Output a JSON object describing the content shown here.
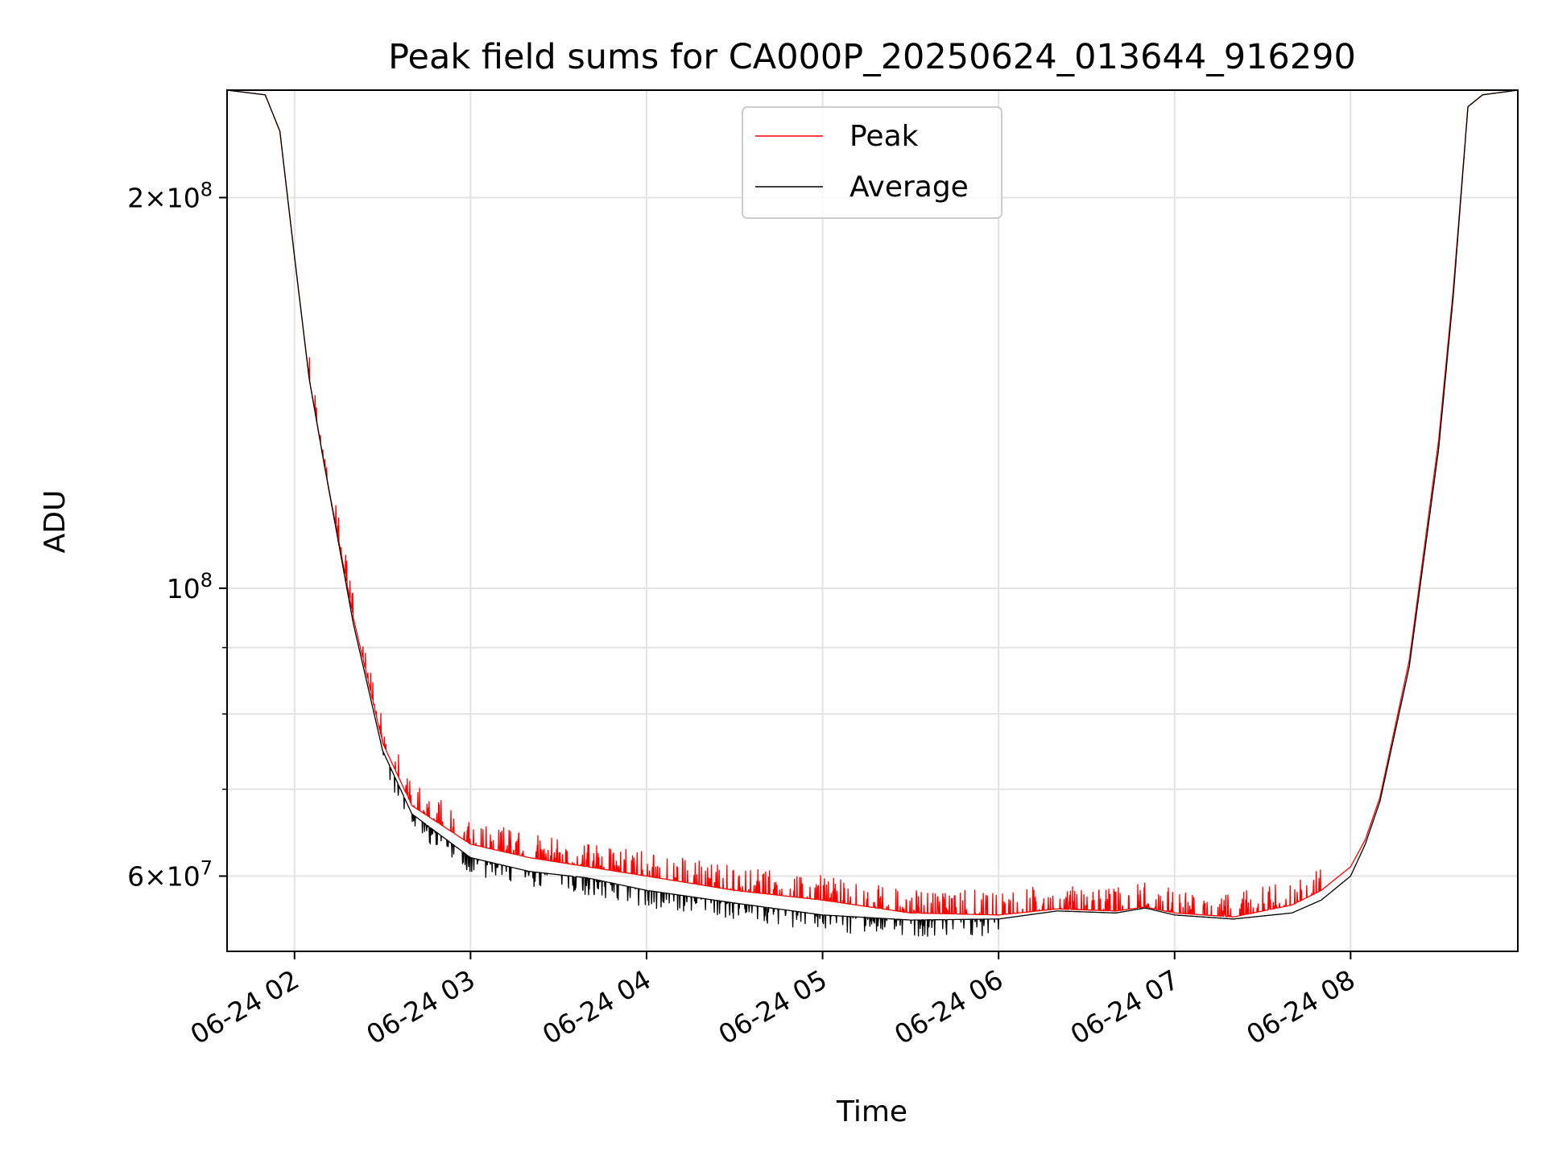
{
  "chart_data": {
    "type": "line",
    "title": "Peak field sums for CA000P_20250624_013644_916290",
    "xlabel": "Time",
    "ylabel": "ADU",
    "yscale": "log",
    "ylim": [
      52500000,
      242000000
    ],
    "xlim": [
      "06-24 01:37",
      "06-24 08:57"
    ],
    "grid": true,
    "legend_placement": "top-center",
    "x_ticks": [
      "06-24 02",
      "06-24 03",
      "06-24 04",
      "06-24 05",
      "06-24 06",
      "06-24 07",
      "06-24 08"
    ],
    "y_ticks_major": [
      "2×10^8",
      "10^8",
      "6×10^7"
    ],
    "y_ticks_minor": [
      70000000,
      80000000,
      90000000
    ],
    "series": [
      {
        "name": "Peak",
        "color": "#ff0000",
        "x": [
          "06-24 01:37",
          "06-24 01:50",
          "06-24 01:55",
          "06-24 02:00",
          "06-24 02:05",
          "06-24 02:10",
          "06-24 02:20",
          "06-24 02:30",
          "06-24 02:40",
          "06-24 03:00",
          "06-24 03:20",
          "06-24 03:40",
          "06-24 04:00",
          "06-24 04:30",
          "06-24 05:00",
          "06-24 05:30",
          "06-24 06:00",
          "06-24 06:20",
          "06-24 06:40",
          "06-24 06:50",
          "06-24 07:00",
          "06-24 07:20",
          "06-24 07:40",
          "06-24 07:50",
          "06-24 08:00",
          "06-24 08:05",
          "06-24 08:10",
          "06-24 08:20",
          "06-24 08:30",
          "06-24 08:35",
          "06-24 08:40",
          "06-24 08:45",
          "06-24 08:57"
        ],
        "y": [
          242000000,
          240000000,
          225000000,
          180000000,
          145000000,
          125000000,
          95000000,
          76000000,
          68000000,
          63500000,
          62000000,
          61000000,
          60000000,
          58500000,
          57500000,
          56200000,
          56000000,
          56600000,
          56400000,
          56800000,
          56200000,
          55800000,
          57000000,
          58500000,
          61000000,
          64000000,
          69000000,
          88000000,
          130000000,
          170000000,
          235000000,
          240000000,
          242000000
        ],
        "spikes": [
          66000000,
          65000000,
          64000000,
          63500000,
          63000000,
          62500000,
          61500000,
          60500000,
          59500000,
          58000000,
          57500000,
          57000000,
          56500000,
          57500000,
          58000000,
          57800000,
          58500000,
          60500000,
          62000000,
          64500000
        ]
      },
      {
        "name": "Average",
        "color": "#000000",
        "x": [
          "06-24 01:37",
          "06-24 01:50",
          "06-24 01:55",
          "06-24 02:00",
          "06-24 02:05",
          "06-24 02:10",
          "06-24 02:20",
          "06-24 02:30",
          "06-24 02:40",
          "06-24 03:00",
          "06-24 03:20",
          "06-24 03:40",
          "06-24 04:00",
          "06-24 04:30",
          "06-24 05:00",
          "06-24 05:30",
          "06-24 06:00",
          "06-24 06:20",
          "06-24 06:40",
          "06-24 06:50",
          "06-24 07:00",
          "06-24 07:20",
          "06-24 07:40",
          "06-24 07:50",
          "06-24 08:00",
          "06-24 08:05",
          "06-24 08:10",
          "06-24 08:20",
          "06-24 08:30",
          "06-24 08:35",
          "06-24 08:40",
          "06-24 08:45",
          "06-24 08:57"
        ],
        "y": [
          242000000,
          240000000,
          225000000,
          180000000,
          145000000,
          125000000,
          94000000,
          75000000,
          67000000,
          62000000,
          60500000,
          59800000,
          58500000,
          57200000,
          56000000,
          55500000,
          55600000,
          56400000,
          56200000,
          56700000,
          56000000,
          55600000,
          56200000,
          57500000,
          60000000,
          63500000,
          68500000,
          87000000,
          128000000,
          168000000,
          235000000,
          240000000,
          242000000
        ],
        "dips": [
          54800000,
          54600000,
          54500000,
          54300000,
          54700000,
          54400000,
          54900000,
          55100000
        ]
      }
    ]
  }
}
